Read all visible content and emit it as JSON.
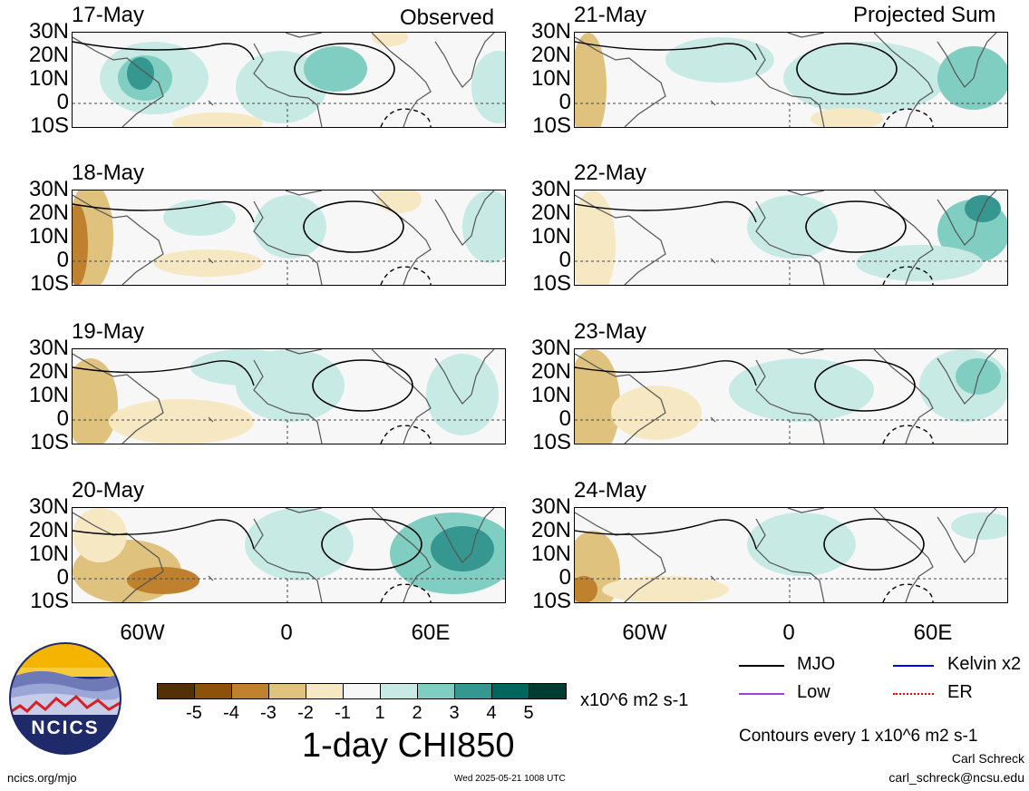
{
  "header": {
    "left_label": "Observed",
    "right_label": "Projected Sum"
  },
  "lat_labels": [
    "30N",
    "20N",
    "10N",
    "0",
    "10S"
  ],
  "lon_labels": [
    "60W",
    "0",
    "60E"
  ],
  "panels": [
    {
      "date": "17-May"
    },
    {
      "date": "18-May"
    },
    {
      "date": "19-May"
    },
    {
      "date": "20-May"
    },
    {
      "date": "21-May"
    },
    {
      "date": "22-May"
    },
    {
      "date": "23-May"
    },
    {
      "date": "24-May"
    }
  ],
  "colorbar": {
    "colors": [
      "#543005",
      "#8c510a",
      "#bf812d",
      "#dfc27d",
      "#f6e8c3",
      "#f7f7f7",
      "#c7eae5",
      "#80cdc1",
      "#35978f",
      "#01665e",
      "#003c30"
    ],
    "ticks": [
      "-5",
      "-4",
      "-3",
      "-2",
      "-1",
      "1",
      "2",
      "3",
      "4",
      "5"
    ],
    "units": "x10^6 m2 s-1",
    "title": "1-day CHI850"
  },
  "legend": {
    "items": [
      {
        "label": "MJO",
        "color": "#000000"
      },
      {
        "label": "Kelvin x2",
        "color": "#0000ff"
      },
      {
        "label": "Low",
        "color": "#a040e0"
      },
      {
        "label": "ER",
        "color": "#ff0000"
      }
    ],
    "contours_note": "Contours every 1 x10^6 m2 s-1"
  },
  "logo": {
    "text": "NCICS"
  },
  "footer": {
    "url": "ncics.org/mjo",
    "timestamp": "Wed 2025-05-21 1008 UTC",
    "author": "Carl Schreck",
    "email": "carl_schreck@ncsu.edu"
  }
}
